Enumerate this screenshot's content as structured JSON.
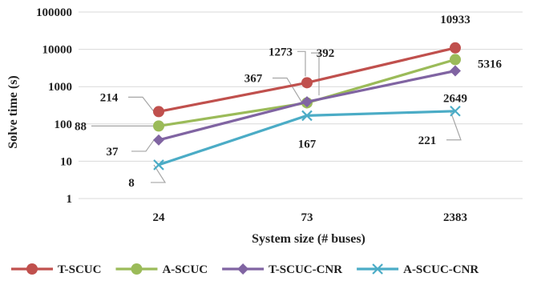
{
  "chart_data": {
    "type": "line",
    "xlabel": "System size (# buses)",
    "ylabel": "Solve time (s)",
    "yscale": "log",
    "ylim": [
      1,
      100000
    ],
    "categories": [
      "24",
      "73",
      "2383"
    ],
    "yticks": [
      "1",
      "10",
      "100",
      "1000",
      "10000",
      "100000"
    ],
    "grid": true,
    "legend_position": "bottom",
    "series": [
      {
        "name": "T-SCUC",
        "values": [
          214,
          1273,
          10933
        ],
        "labels": [
          "214",
          "1273",
          "10933"
        ],
        "color": "#c0504d",
        "marker": "circle"
      },
      {
        "name": "A-SCUC",
        "values": [
          88,
          367,
          5316
        ],
        "labels": [
          "88",
          "367",
          "5316"
        ],
        "color": "#9bbb59",
        "marker": "circle"
      },
      {
        "name": "T-SCUC-CNR",
        "values": [
          37,
          392,
          2649
        ],
        "labels": [
          "37",
          "392",
          "2649"
        ],
        "color": "#8064a2",
        "marker": "diamond"
      },
      {
        "name": "A-SCUC-CNR",
        "values": [
          8,
          167,
          221
        ],
        "labels": [
          "8",
          "167",
          "221"
        ],
        "color": "#4bacc6",
        "marker": "x"
      }
    ]
  }
}
